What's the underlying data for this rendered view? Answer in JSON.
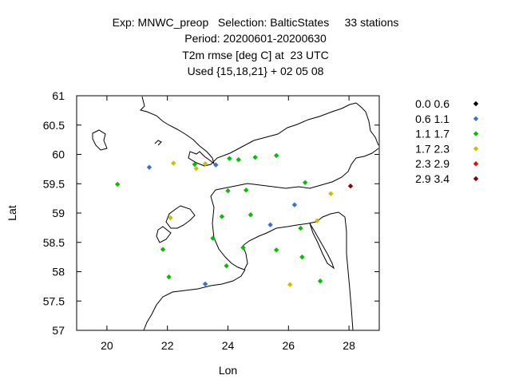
{
  "chart_data": {
    "type": "scatter",
    "title_lines": [
      "Exp: MNWC_preop   Selection: BalticStates     33 stations",
      "Period: 20200601-20200630",
      "T2m rmse [deg C] at  23 UTC",
      "Used {15,18,21} + 02 05 08"
    ],
    "xlabel": "Lon",
    "ylabel": "Lat",
    "xlim": [
      19,
      29
    ],
    "ylim": [
      57,
      61
    ],
    "xticks": [
      20,
      22,
      24,
      26,
      28
    ],
    "yticks": [
      57,
      57.5,
      58,
      58.5,
      59,
      59.5,
      60,
      60.5,
      61
    ],
    "ytick_labels": [
      "57",
      "57.5",
      "58",
      "58.5",
      "59",
      "59.5",
      "60",
      "60.5",
      "61"
    ],
    "grid": false,
    "legend_position": "right",
    "legend": [
      {
        "label": "0.0 0.6",
        "color": "#000000"
      },
      {
        "label": "0.6 1.1",
        "color": "#3a6fd8"
      },
      {
        "label": "1.1 1.7",
        "color": "#00c000"
      },
      {
        "label": "1.7 2.3",
        "color": "#c8c000"
      },
      {
        "label": "2.3 2.9",
        "color": "#ff0000"
      },
      {
        "label": "2.9 3.4",
        "color": "#8b0000"
      }
    ],
    "series": [
      {
        "values": [
          [
            21.4,
            59.78
          ],
          [
            23.6,
            59.82
          ],
          [
            26.2,
            59.14
          ],
          [
            25.4,
            58.8
          ],
          [
            23.25,
            57.79
          ]
        ],
        "color": "#3a6fd8",
        "bin": 1
      },
      {
        "values": [
          [
            20.35,
            59.49
          ],
          [
            22.9,
            59.83
          ],
          [
            24.05,
            59.93
          ],
          [
            24.35,
            59.91
          ],
          [
            24.9,
            59.95
          ],
          [
            25.6,
            59.98
          ],
          [
            26.55,
            59.52
          ],
          [
            24.0,
            59.38
          ],
          [
            24.6,
            59.39
          ],
          [
            23.8,
            58.94
          ],
          [
            24.75,
            58.97
          ],
          [
            23.5,
            58.57
          ],
          [
            24.5,
            58.41
          ],
          [
            25.6,
            58.37
          ],
          [
            26.4,
            58.74
          ],
          [
            26.45,
            58.25
          ],
          [
            21.85,
            58.38
          ],
          [
            23.95,
            58.1
          ],
          [
            22.05,
            57.91
          ],
          [
            27.05,
            57.84
          ]
        ],
        "color": "#00c000",
        "bin": 2
      },
      {
        "values": [
          [
            22.2,
            59.85
          ],
          [
            22.95,
            59.76
          ],
          [
            23.25,
            59.84
          ],
          [
            22.1,
            58.92
          ],
          [
            27.4,
            59.33
          ],
          [
            26.95,
            58.87
          ],
          [
            26.05,
            57.78
          ]
        ],
        "color": "#c8c000",
        "bin": 3
      },
      {
        "values": [
          [
            28.05,
            59.46
          ]
        ],
        "color": "#8b0000",
        "bin": 5
      }
    ]
  }
}
